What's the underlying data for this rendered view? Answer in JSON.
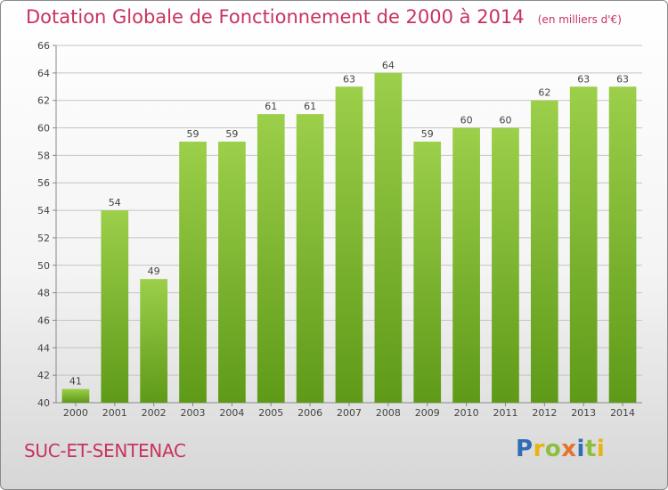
{
  "title": "Dotation Globale de Fonctionnement de 2000 à 2014",
  "unit_note": "(en milliers d'€)",
  "commune": "SUC-ET-SENTENAC",
  "logo": {
    "text": "Proxiti",
    "letters": [
      {
        "char": "P",
        "color": "#2f6db5"
      },
      {
        "char": "r",
        "color": "#e8b412"
      },
      {
        "char": "o",
        "color": "#8cbf3f"
      },
      {
        "char": "x",
        "color": "#e4732b"
      },
      {
        "char": "i",
        "color": "#2f6db5"
      },
      {
        "char": "t",
        "color": "#8cbf3f"
      },
      {
        "char": "i",
        "color": "#e8b412"
      }
    ]
  },
  "chart_data": {
    "type": "bar",
    "title": "Dotation Globale de Fonctionnement de 2000 à 2014",
    "categories": [
      "2000",
      "2001",
      "2002",
      "2003",
      "2004",
      "2005",
      "2006",
      "2007",
      "2008",
      "2009",
      "2010",
      "2011",
      "2012",
      "2013",
      "2014"
    ],
    "values": [
      41,
      54,
      49,
      59,
      59,
      61,
      61,
      63,
      64,
      59,
      60,
      60,
      62,
      63,
      63
    ],
    "ylim": [
      40,
      66
    ],
    "yticks": [
      40,
      42,
      44,
      46,
      48,
      50,
      52,
      54,
      56,
      58,
      60,
      62,
      64,
      66
    ],
    "grid": true,
    "bar_color_top": "#9ccf4a",
    "bar_color_bottom": "#5e9a18"
  }
}
